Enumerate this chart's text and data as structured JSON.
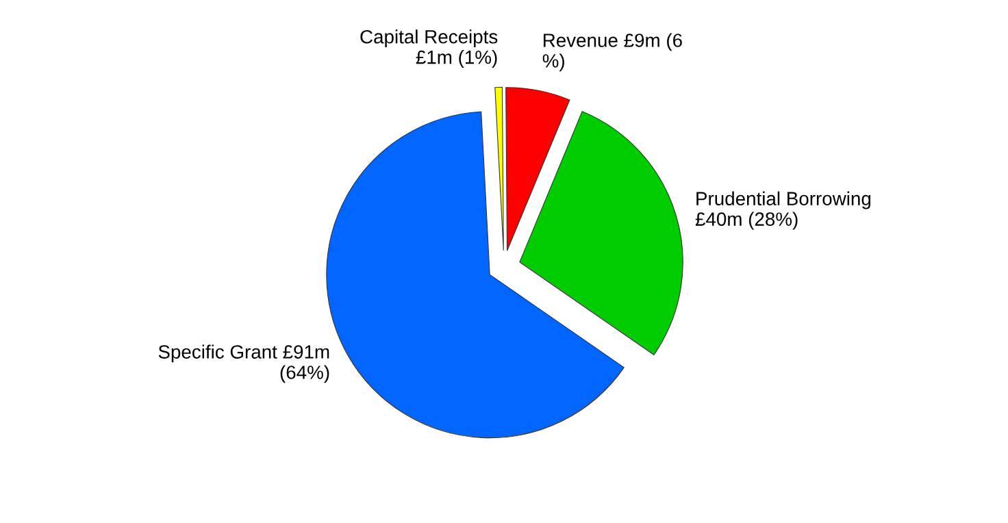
{
  "chart_data": {
    "type": "pie",
    "categories": [
      "Capital Receipts\n£1m (1%)",
      "Revenue £9m (6\n%)",
      "Prudential Borrowing\n£40m (28%)",
      "Specific Grant £91m\n(64%)"
    ],
    "values": [
      1,
      9,
      40,
      91
    ],
    "colors": [
      "#ffff00",
      "#ff0000",
      "#00cc00",
      "#0066ff"
    ]
  }
}
